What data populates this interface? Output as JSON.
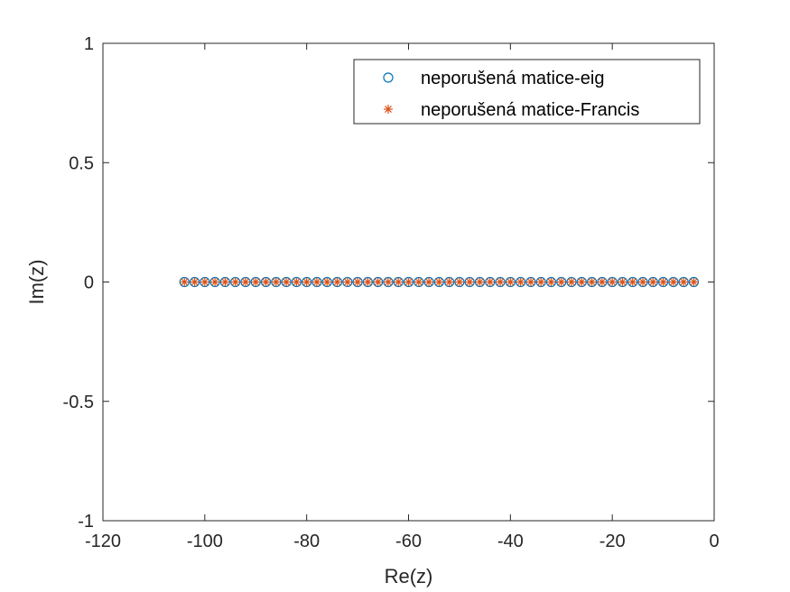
{
  "chart_data": {
    "type": "scatter",
    "xlabel": "Re(z)",
    "ylabel": "Im(z)",
    "xlim": [
      -120,
      0
    ],
    "ylim": [
      -1,
      1
    ],
    "xticks": [
      "-120",
      "-100",
      "-80",
      "-60",
      "-40",
      "-20",
      "0"
    ],
    "yticks": [
      "-1",
      "-0.5",
      "0",
      "0.5",
      "1"
    ],
    "xtick_values": [
      -120,
      -100,
      -80,
      -60,
      -40,
      -20,
      0
    ],
    "ytick_values": [
      -1,
      -0.5,
      0,
      0.5,
      1
    ],
    "grid": false,
    "legend_position": "top-right",
    "series": [
      {
        "name": "neporušená matice-eig",
        "marker": "circle",
        "color": "#0072BD",
        "x": [
          -104,
          -102,
          -100,
          -98,
          -96,
          -94,
          -92,
          -90,
          -88,
          -86,
          -84,
          -82,
          -80,
          -78,
          -76,
          -74,
          -72,
          -70,
          -68,
          -66,
          -64,
          -62,
          -60,
          -58,
          -56,
          -54,
          -52,
          -50,
          -48,
          -46,
          -44,
          -42,
          -40,
          -38,
          -36,
          -34,
          -32,
          -30,
          -28,
          -26,
          -24,
          -22,
          -20,
          -18,
          -16,
          -14,
          -12,
          -10,
          -8,
          -6,
          -4
        ],
        "y": [
          0,
          0,
          0,
          0,
          0,
          0,
          0,
          0,
          0,
          0,
          0,
          0,
          0,
          0,
          0,
          0,
          0,
          0,
          0,
          0,
          0,
          0,
          0,
          0,
          0,
          0,
          0,
          0,
          0,
          0,
          0,
          0,
          0,
          0,
          0,
          0,
          0,
          0,
          0,
          0,
          0,
          0,
          0,
          0,
          0,
          0,
          0,
          0,
          0,
          0,
          0
        ]
      },
      {
        "name": "neporušená matice-Francis",
        "marker": "asterisk",
        "color": "#D95319",
        "x": [
          -104,
          -102,
          -100,
          -98,
          -96,
          -94,
          -92,
          -90,
          -88,
          -86,
          -84,
          -82,
          -80,
          -78,
          -76,
          -74,
          -72,
          -70,
          -68,
          -66,
          -64,
          -62,
          -60,
          -58,
          -56,
          -54,
          -52,
          -50,
          -48,
          -46,
          -44,
          -42,
          -40,
          -38,
          -36,
          -34,
          -32,
          -30,
          -28,
          -26,
          -24,
          -22,
          -20,
          -18,
          -16,
          -14,
          -12,
          -10,
          -8,
          -6,
          -4
        ],
        "y": [
          0,
          0,
          0,
          0,
          0,
          0,
          0,
          0,
          0,
          0,
          0,
          0,
          0,
          0,
          0,
          0,
          0,
          0,
          0,
          0,
          0,
          0,
          0,
          0,
          0,
          0,
          0,
          0,
          0,
          0,
          0,
          0,
          0,
          0,
          0,
          0,
          0,
          0,
          0,
          0,
          0,
          0,
          0,
          0,
          0,
          0,
          0,
          0,
          0,
          0,
          0
        ]
      }
    ]
  }
}
